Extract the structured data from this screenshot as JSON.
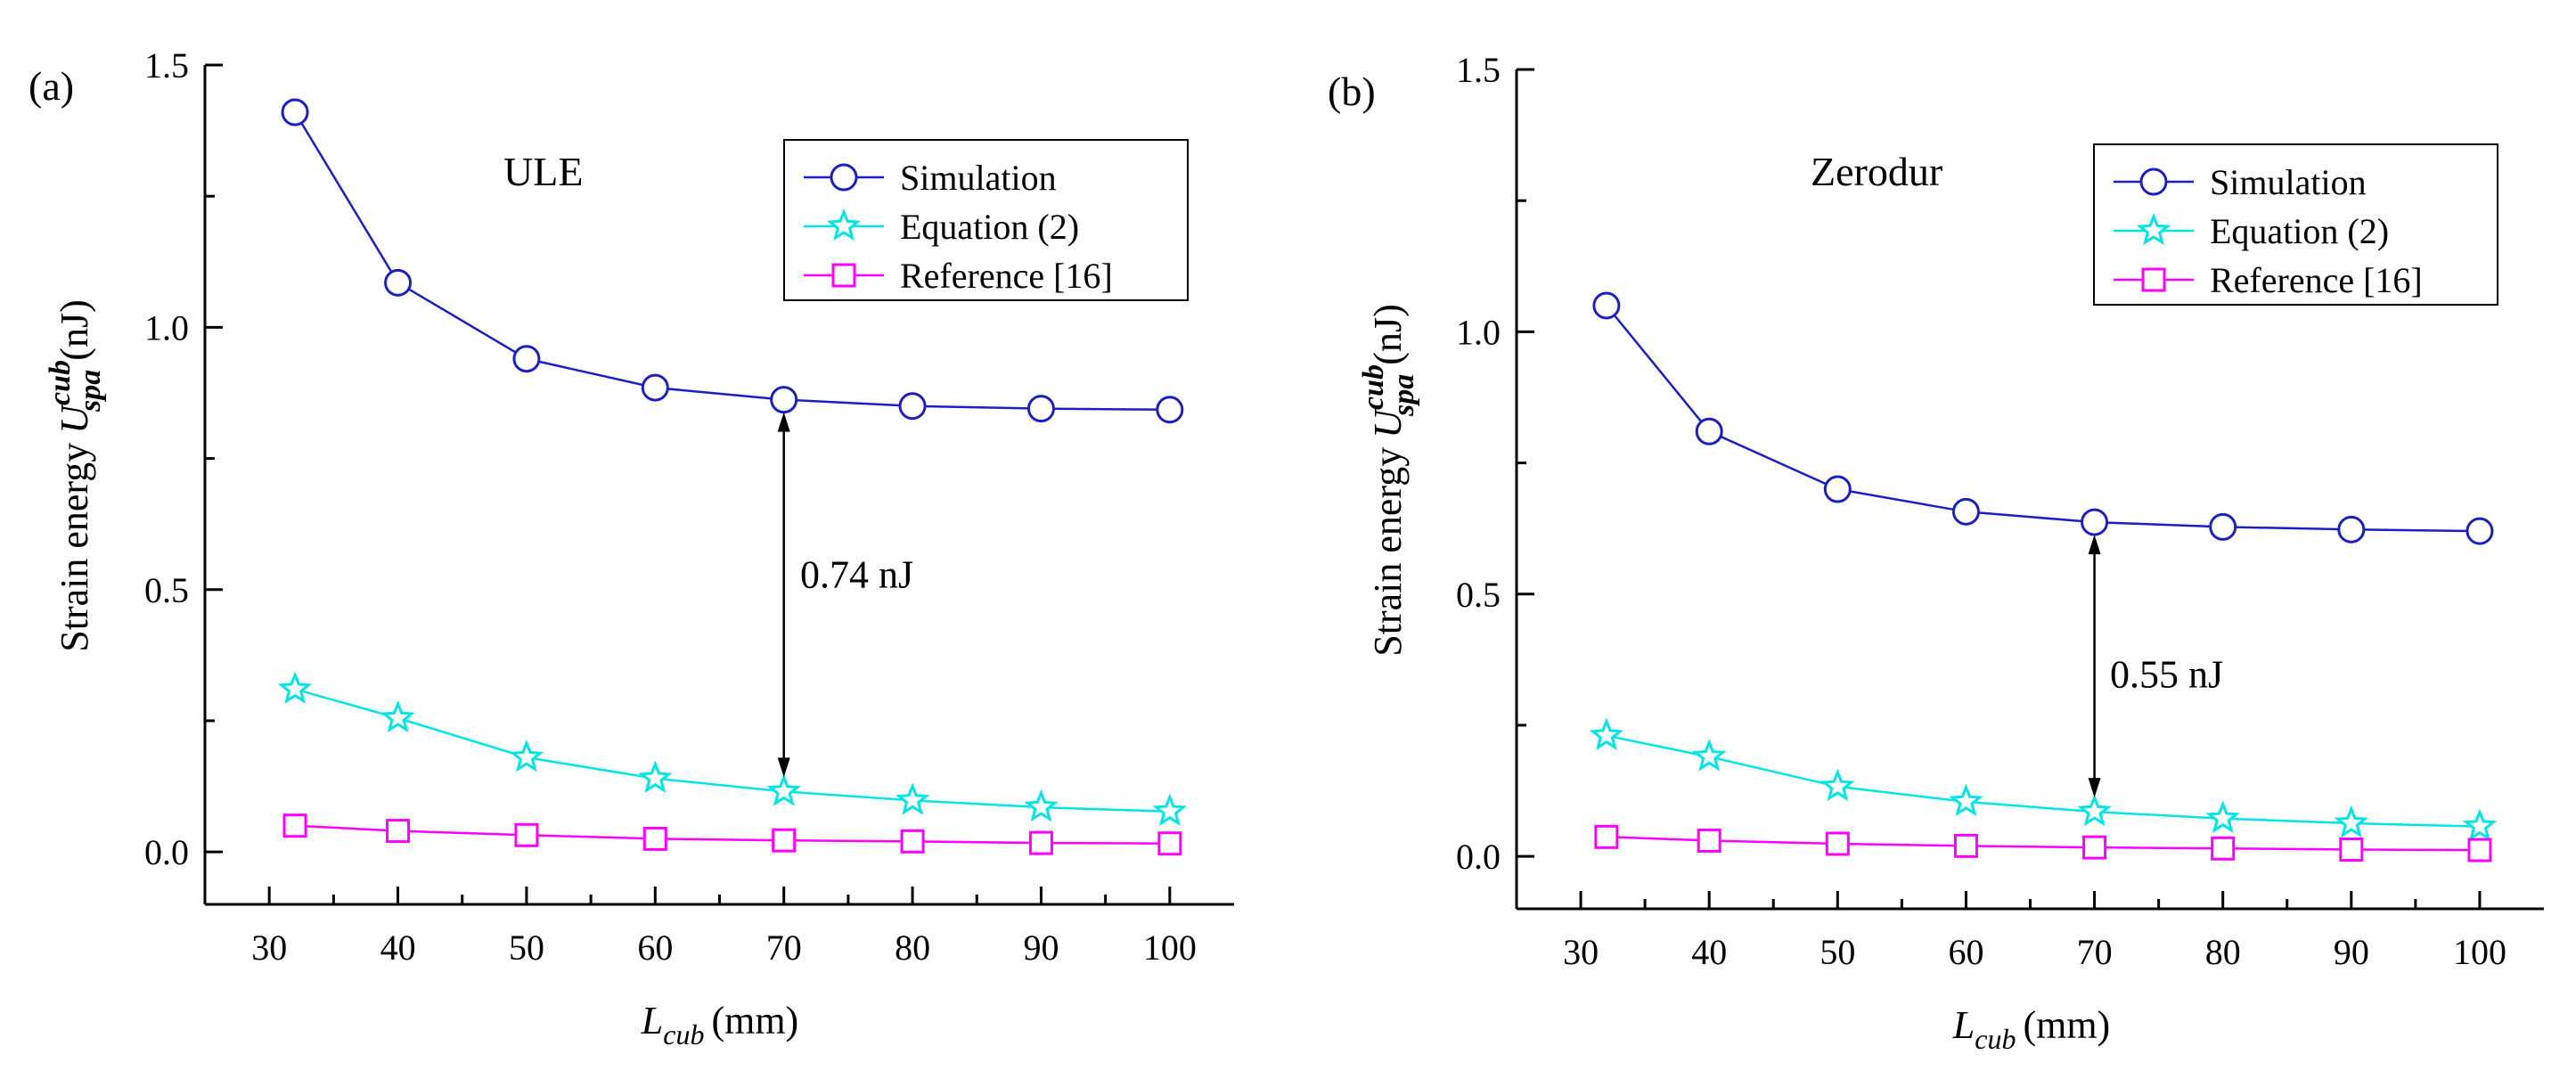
{
  "chart_data": [
    {
      "type": "line",
      "panel_label": "(a)",
      "annotation_title": "ULE",
      "xlabel": {
        "main": "L",
        "sub": "cub",
        "unit": "(mm)"
      },
      "ylabel": {
        "prefix": "Strain energy",
        "main": "U",
        "sup": "cub",
        "sub": "spa",
        "unit": "(nJ)"
      },
      "xlim": [
        25,
        105
      ],
      "ylim": [
        -0.1,
        1.5
      ],
      "xticks": [
        30,
        40,
        50,
        60,
        70,
        80,
        90,
        100
      ],
      "yticks": [
        0.0,
        0.5,
        1.0,
        1.5
      ],
      "ytick_labels": [
        "0.0",
        "0.5",
        "1.0",
        "1.5"
      ],
      "x": [
        32,
        40,
        50,
        60,
        70,
        80,
        90,
        100
      ],
      "series": [
        {
          "name": "Simulation",
          "marker": "circle",
          "color": "#1c1fc4",
          "values": [
            1.41,
            1.085,
            0.94,
            0.885,
            0.862,
            0.85,
            0.845,
            0.843
          ]
        },
        {
          "name": "Equation  (2)",
          "marker": "star",
          "color": "#00e5e5",
          "values": [
            0.31,
            0.255,
            0.18,
            0.14,
            0.115,
            0.098,
            0.085,
            0.077
          ]
        },
        {
          "name": "Reference [16]",
          "marker": "square",
          "color": "#ff00ff",
          "values": [
            0.05,
            0.04,
            0.032,
            0.025,
            0.022,
            0.02,
            0.017,
            0.016
          ]
        }
      ],
      "arrow": {
        "x": 70,
        "y_top": 0.862,
        "y_bottom": 0.115,
        "label": "0.74 nJ"
      },
      "legend_position": "top-right"
    },
    {
      "type": "line",
      "panel_label": "(b)",
      "annotation_title": "Zerodur",
      "xlabel": {
        "main": "L",
        "sub": "cub",
        "unit": "(mm)"
      },
      "ylabel": {
        "prefix": "Strain energy",
        "main": "U",
        "sup": "cub",
        "sub": "spa",
        "unit": "(nJ)"
      },
      "xlim": [
        25,
        105
      ],
      "ylim": [
        -0.1,
        1.5
      ],
      "xticks": [
        30,
        40,
        50,
        60,
        70,
        80,
        90,
        100
      ],
      "yticks": [
        0.0,
        0.5,
        1.0,
        1.5
      ],
      "ytick_labels": [
        "0.0",
        "0.5",
        "1.0",
        "1.5"
      ],
      "x": [
        32,
        40,
        50,
        60,
        70,
        80,
        90,
        100
      ],
      "series": [
        {
          "name": "Simulation",
          "marker": "circle",
          "color": "#1c1fc4",
          "values": [
            1.05,
            0.81,
            0.7,
            0.657,
            0.637,
            0.628,
            0.623,
            0.62
          ]
        },
        {
          "name": "Equation  (2)",
          "marker": "star",
          "color": "#00e5e5",
          "values": [
            0.23,
            0.19,
            0.133,
            0.104,
            0.085,
            0.072,
            0.063,
            0.057
          ]
        },
        {
          "name": "Reference [16]",
          "marker": "square",
          "color": "#ff00ff",
          "values": [
            0.037,
            0.03,
            0.024,
            0.02,
            0.017,
            0.015,
            0.013,
            0.012
          ]
        }
      ],
      "arrow": {
        "x": 70,
        "y_top": 0.637,
        "y_bottom": 0.085,
        "label": "0.55 nJ"
      },
      "legend_position": "top-right"
    }
  ]
}
